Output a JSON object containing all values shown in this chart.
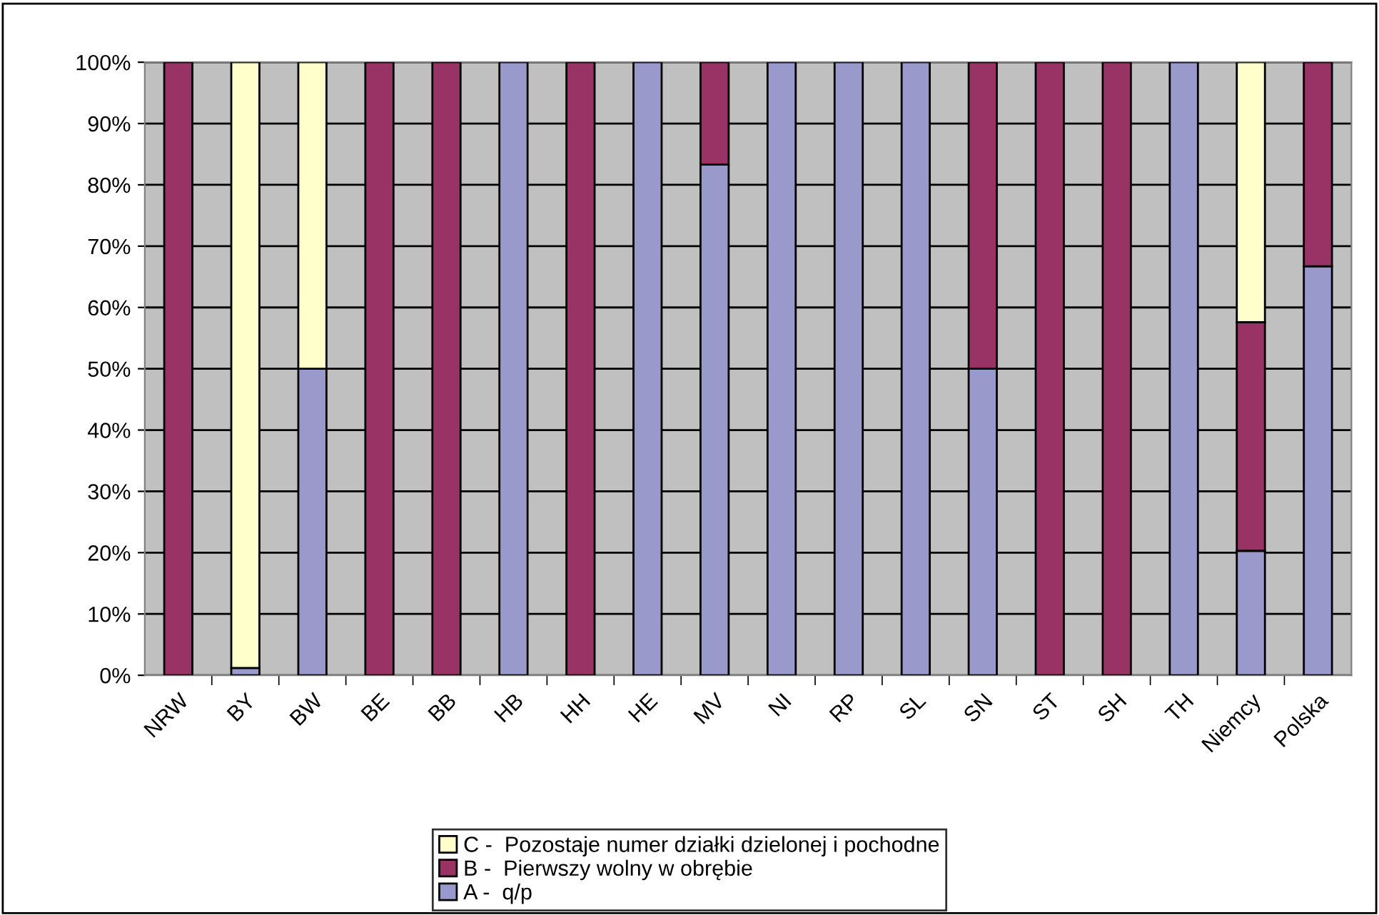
{
  "chart_data": {
    "type": "bar",
    "stacked": true,
    "categories": [
      "NRW",
      "BY",
      "BW",
      "BE",
      "BB",
      "HB",
      "HH",
      "HE",
      "MV",
      "NI",
      "RP",
      "SL",
      "SN",
      "ST",
      "SH",
      "TH",
      "Niemcy",
      "Polska"
    ],
    "series": [
      {
        "name": "A -  q/p",
        "color": "#9999cc",
        "values": [
          0,
          1.2,
          50,
          0,
          0,
          100,
          0,
          100,
          83.3,
          100,
          100,
          100,
          50,
          0,
          0,
          100,
          20.3,
          66.7
        ]
      },
      {
        "name": "B -  Pierwszy wolny w obrębie",
        "color": "#993366",
        "values": [
          100,
          0,
          0,
          100,
          100,
          0,
          100,
          0,
          16.7,
          0,
          0,
          0,
          50,
          100,
          100,
          0,
          37.3,
          33.3
        ]
      },
      {
        "name": "C -  Pozostaje numer działki dzielonej i pochodne",
        "color": "#ffffcc",
        "values": [
          0,
          98.8,
          50,
          0,
          0,
          0,
          0,
          0,
          0,
          0,
          0,
          0,
          0,
          0,
          0,
          0,
          42.4,
          0
        ]
      }
    ],
    "ylim": [
      0,
      100
    ],
    "yticks": [
      {
        "value": 0,
        "label": "0%"
      },
      {
        "value": 10,
        "label": "10%"
      },
      {
        "value": 20,
        "label": "20%"
      },
      {
        "value": 30,
        "label": "30%"
      },
      {
        "value": 40,
        "label": "40%"
      },
      {
        "value": 50,
        "label": "50%"
      },
      {
        "value": 60,
        "label": "60%"
      },
      {
        "value": 70,
        "label": "70%"
      },
      {
        "value": 80,
        "label": "80%"
      },
      {
        "value": 90,
        "label": "90%"
      },
      {
        "value": 100,
        "label": "100%"
      }
    ],
    "grid": "y",
    "legend": "bottom"
  }
}
